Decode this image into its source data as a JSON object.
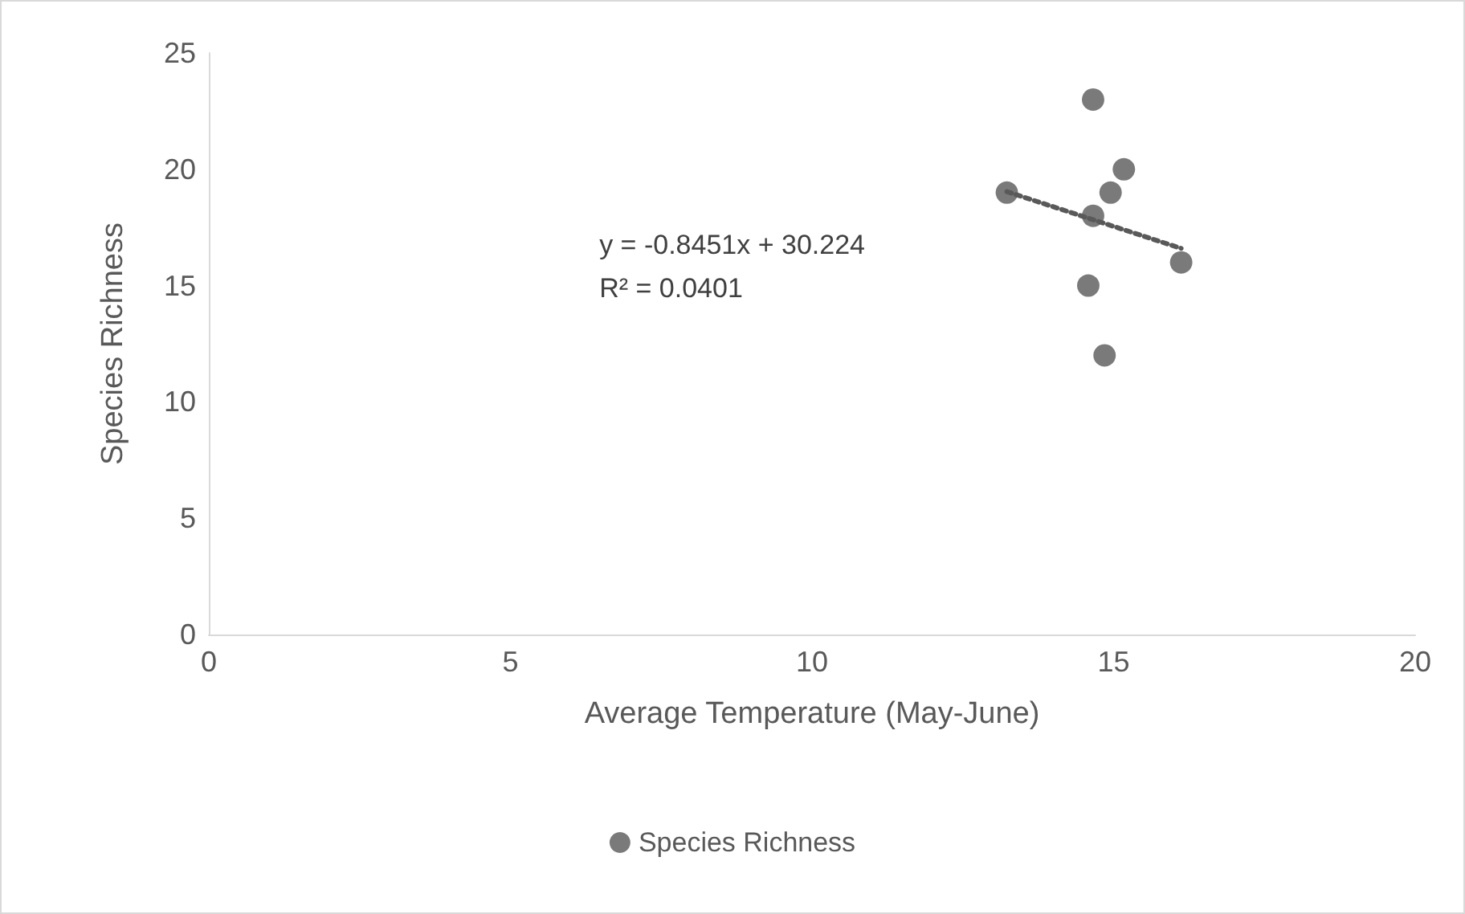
{
  "chart_data": {
    "type": "scatter",
    "xlabel": "Average Temperature (May-June)",
    "ylabel": "Species Richness",
    "xlim": [
      0,
      20
    ],
    "xticks": [
      0,
      5,
      10,
      15,
      20
    ],
    "ylim": [
      0,
      25
    ],
    "yticks": [
      0,
      5,
      10,
      15,
      20,
      25
    ],
    "grid": false,
    "legend": "bottom",
    "marker": "circle",
    "annotations": [
      "y = -0.8451x + 30.224",
      "R² = 0.0401"
    ],
    "series": [
      {
        "name": "Species Richness",
        "color": "#595959",
        "x": [
          13.23,
          14.66,
          15.17,
          14.95,
          14.66,
          16.12,
          14.58,
          14.85
        ],
        "values": [
          19,
          23,
          20,
          19,
          18,
          16,
          15,
          12
        ]
      },
      {
        "type": "line",
        "color": "#595959",
        "line_style": "dotted",
        "marker": "none",
        "x": [
          13.23,
          16.12
        ],
        "values": [
          19.04,
          16.6
        ]
      }
    ]
  }
}
